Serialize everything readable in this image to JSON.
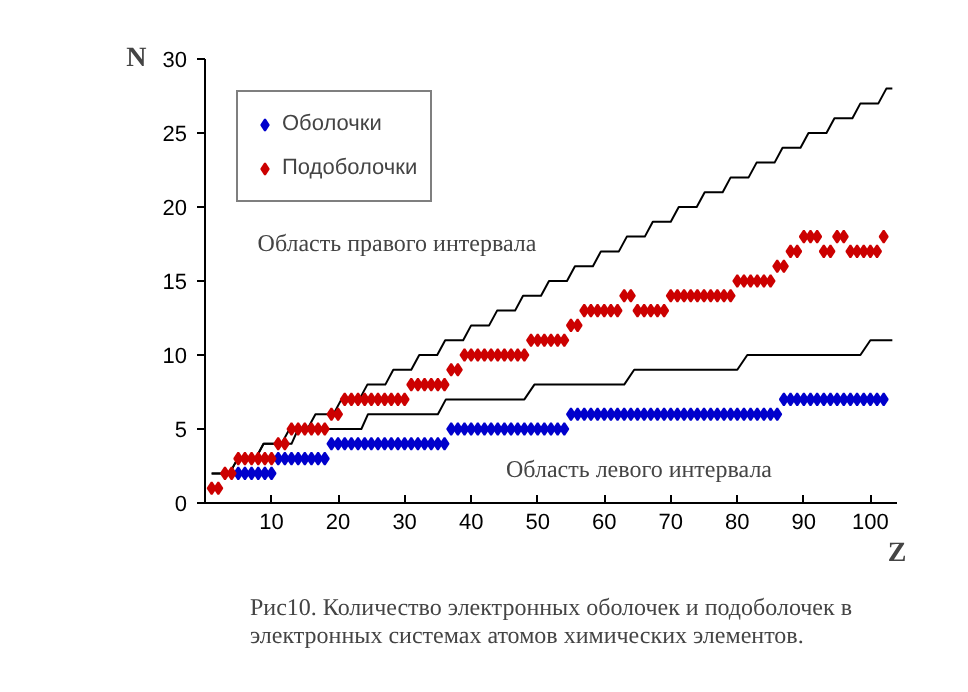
{
  "chart_data": {
    "type": "scatter",
    "xlabel": "Z",
    "ylabel": "N",
    "xlim": [
      0,
      104
    ],
    "ylim": [
      0,
      30
    ],
    "xticks": [
      10,
      20,
      30,
      40,
      50,
      60,
      70,
      80,
      90,
      100
    ],
    "yticks": [
      0,
      5,
      10,
      15,
      20,
      25,
      30
    ],
    "grid": false,
    "legend": "top left",
    "marker": "diamond",
    "series": [
      {
        "type": "line",
        "marker": "none",
        "color": "#000000",
        "x": [
          1,
          3.7,
          4.9,
          7.6,
          8.8,
          11.5,
          12.7,
          15.4,
          16.6,
          19.3,
          20.5,
          23.2,
          24.4,
          27.1,
          28.3,
          31.0,
          32.2,
          34.9,
          36.1,
          38.8,
          40.0,
          42.7,
          43.9,
          46.6,
          47.8,
          50.5,
          51.7,
          54.4,
          55.6,
          58.3,
          59.5,
          62.2,
          63.4,
          66.1,
          67.3,
          70.0,
          71.2,
          73.9,
          75.1,
          77.8,
          79.0,
          81.7,
          82.9,
          85.6,
          86.8,
          89.5,
          90.7,
          93.4,
          94.6,
          97.3,
          98.5,
          101.2,
          102.4,
          103.3
        ],
        "values": [
          2,
          2,
          3,
          3,
          4,
          4,
          5,
          5,
          6,
          6,
          7,
          7,
          8,
          8,
          9,
          9,
          10,
          10,
          11,
          11,
          12,
          12,
          13,
          13,
          14,
          14,
          15,
          15,
          16,
          16,
          17,
          17,
          18,
          18,
          19,
          19,
          20,
          20,
          21,
          21,
          22,
          22,
          23,
          23,
          24,
          24,
          25,
          25,
          26,
          26,
          27,
          27,
          28,
          28
        ]
      },
      {
        "type": "line",
        "marker": "none",
        "color": "#000000",
        "x": [
          1,
          3.7,
          4.9,
          7.6,
          8.8,
          13,
          14,
          23.5,
          24.5,
          35,
          36.2,
          48,
          49.5,
          63,
          64.5,
          80,
          81.5,
          98.5,
          100,
          103.3
        ],
        "values": [
          2,
          2,
          3,
          3,
          4,
          4,
          5,
          5,
          6,
          6,
          7,
          7,
          8,
          8,
          9,
          9,
          10,
          10,
          11,
          11
        ]
      },
      {
        "name": "Оболочки",
        "color": "#0000cc",
        "x": [
          5,
          6,
          7,
          8,
          9,
          10,
          11,
          12,
          13,
          14,
          15,
          16,
          17,
          18,
          19,
          20,
          21,
          22,
          23,
          24,
          25,
          26,
          27,
          28,
          29,
          30,
          31,
          32,
          33,
          34,
          35,
          36,
          37,
          38,
          39,
          40,
          41,
          42,
          43,
          44,
          45,
          46,
          47,
          48,
          49,
          50,
          51,
          52,
          53,
          54,
          55,
          56,
          57,
          58,
          59,
          60,
          61,
          62,
          63,
          64,
          65,
          66,
          67,
          68,
          69,
          70,
          71,
          72,
          73,
          74,
          75,
          76,
          77,
          78,
          79,
          80,
          81,
          82,
          83,
          84,
          85,
          86,
          87,
          88,
          89,
          90,
          91,
          92,
          93,
          94,
          95,
          96,
          97,
          98,
          99,
          100,
          101,
          102
        ],
        "values": [
          2,
          2,
          2,
          2,
          2,
          2,
          3,
          3,
          3,
          3,
          3,
          3,
          3,
          3,
          4,
          4,
          4,
          4,
          4,
          4,
          4,
          4,
          4,
          4,
          4,
          4,
          4,
          4,
          4,
          4,
          4,
          4,
          5,
          5,
          5,
          5,
          5,
          5,
          5,
          5,
          5,
          5,
          5,
          5,
          5,
          5,
          5,
          5,
          5,
          5,
          6,
          6,
          6,
          6,
          6,
          6,
          6,
          6,
          6,
          6,
          6,
          6,
          6,
          6,
          6,
          6,
          6,
          6,
          6,
          6,
          6,
          6,
          6,
          6,
          6,
          6,
          6,
          6,
          6,
          6,
          6,
          6,
          7,
          7,
          7,
          7,
          7,
          7,
          7,
          7,
          7,
          7,
          7,
          7,
          7,
          7,
          7,
          7
        ]
      },
      {
        "name": "Подоболочки",
        "color": "#cc0000",
        "x": [
          1,
          2,
          3,
          4,
          5,
          6,
          7,
          8,
          9,
          10,
          11,
          12,
          13,
          14,
          15,
          16,
          17,
          18,
          19,
          20,
          21,
          22,
          23,
          24,
          25,
          26,
          27,
          28,
          29,
          30,
          31,
          32,
          33,
          34,
          35,
          36,
          37,
          38,
          39,
          40,
          41,
          42,
          43,
          44,
          45,
          46,
          47,
          48,
          49,
          50,
          51,
          52,
          53,
          54,
          55,
          56,
          57,
          58,
          59,
          60,
          61,
          62,
          63,
          64,
          65,
          66,
          67,
          68,
          69,
          70,
          71,
          72,
          73,
          74,
          75,
          76,
          77,
          78,
          79,
          80,
          81,
          82,
          83,
          84,
          85,
          86,
          87,
          88,
          89,
          90,
          91,
          92,
          93,
          94,
          95,
          96,
          97,
          98,
          99,
          100,
          101,
          102
        ],
        "values": [
          1,
          1,
          2,
          2,
          3,
          3,
          3,
          3,
          3,
          3,
          4,
          4,
          5,
          5,
          5,
          5,
          5,
          5,
          6,
          6,
          7,
          7,
          7,
          7,
          7,
          7,
          7,
          7,
          7,
          7,
          8,
          8,
          8,
          8,
          8,
          8,
          9,
          9,
          10,
          10,
          10,
          10,
          10,
          10,
          10,
          10,
          10,
          10,
          11,
          11,
          11,
          11,
          11,
          11,
          12,
          12,
          13,
          13,
          13,
          13,
          13,
          13,
          14,
          14,
          13,
          13,
          13,
          13,
          13,
          14,
          14,
          14,
          14,
          14,
          14,
          14,
          14,
          14,
          14,
          15,
          15,
          15,
          15,
          15,
          15,
          16,
          16,
          17,
          17,
          18,
          18,
          18,
          17,
          17,
          18,
          18,
          17,
          17,
          17,
          17,
          17,
          18
        ]
      }
    ],
    "annotations": [
      "Область правого интервала",
      "Область левого интервала",
      "Рис10. Количество электронных оболочек и подоболочек в\nэлектронных системах атомов химических элементов."
    ]
  }
}
